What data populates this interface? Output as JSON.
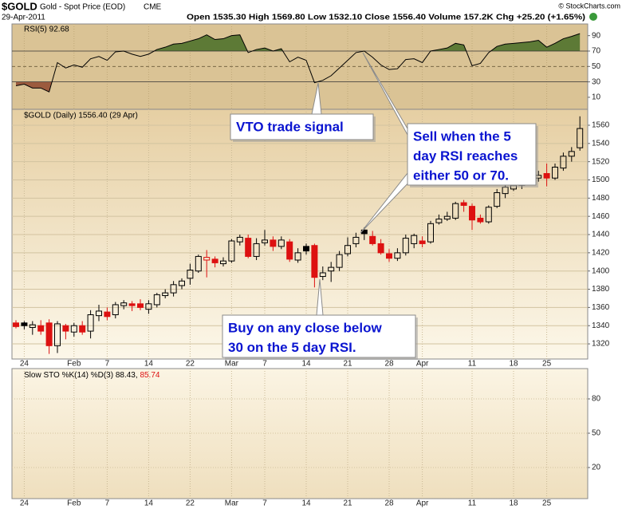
{
  "header": {
    "symbol": "$GOLD",
    "name": "Gold - Spot Price (EOD)",
    "exchange": "CME",
    "date": "29-Apr-2011",
    "quote": "Open 1535.30  High 1569.80  Low 1532.10  Close 1556.40  Volume 157.2K  Chg +25.20 (+1.65%)",
    "credit": "© StockCharts.com"
  },
  "chart_data": [
    {
      "type": "line",
      "title": "RSI(5) 92.68",
      "color": "#000000",
      "values": [
        25,
        27,
        22,
        22,
        17,
        55,
        48,
        52,
        49,
        60,
        63,
        58,
        69,
        70,
        66,
        63,
        66,
        72,
        75,
        79,
        80,
        83,
        86,
        91,
        85,
        86,
        90,
        91,
        68,
        72,
        74,
        70,
        73,
        56,
        62,
        58,
        29,
        32,
        38,
        48,
        58,
        68,
        70,
        62,
        52,
        46,
        47,
        59,
        60,
        55,
        70,
        72,
        74,
        80,
        78,
        51,
        54,
        68,
        76,
        79,
        80,
        81,
        82,
        84,
        75,
        80,
        86,
        89,
        92.68
      ],
      "ylim": [
        -5.6,
        105.2
      ],
      "yticks": [
        10,
        30,
        50,
        70,
        90
      ],
      "reference_lines": [
        70,
        50,
        30
      ],
      "fill_colors": {
        "above": "#5d7a36",
        "below": "#9c5b3e"
      }
    },
    {
      "type": "candlestick",
      "title": "$GOLD (Daily) 1556.40 (29 Apr)",
      "categories": [
        null,
        "24",
        null,
        null,
        null,
        null,
        null,
        "Feb",
        null,
        null,
        null,
        "7",
        null,
        null,
        null,
        null,
        "14",
        null,
        null,
        null,
        null,
        "22",
        null,
        null,
        null,
        null,
        "Mar",
        null,
        null,
        null,
        "7",
        null,
        null,
        null,
        null,
        "14",
        null,
        null,
        null,
        null,
        "21",
        null,
        null,
        null,
        null,
        "28",
        null,
        null,
        null,
        "Apr",
        null,
        null,
        null,
        null,
        null,
        "11",
        null,
        null,
        null,
        null,
        "18",
        null,
        null,
        null,
        "25",
        null,
        null,
        null,
        null
      ],
      "open": [
        1343,
        1343,
        1338,
        1340,
        1343,
        1318,
        1340,
        1333,
        1340,
        1334,
        1351,
        1355,
        1352,
        1362,
        1364,
        1364,
        1358,
        1363,
        1373,
        1376,
        1384,
        1392,
        1400,
        1412,
        1413,
        1408,
        1411,
        1432,
        1436,
        1416,
        1431,
        1434,
        1427,
        1432,
        1412,
        1427,
        1428,
        1394,
        1400,
        1404,
        1419,
        1430,
        1445,
        1438,
        1430,
        1419,
        1414,
        1420,
        1430,
        1433,
        1432,
        1453,
        1457,
        1458,
        1475,
        1471,
        1458,
        1454,
        1471,
        1485,
        1490,
        1494,
        1497,
        1502,
        1507,
        1502,
        1513,
        1526,
        1535.3
      ],
      "high": [
        1346,
        1345,
        1345,
        1346,
        1347,
        1345,
        1342,
        1343,
        1345,
        1357,
        1363,
        1360,
        1366,
        1368,
        1367,
        1369,
        1368,
        1376,
        1380,
        1389,
        1392,
        1408,
        1418,
        1423,
        1416,
        1415,
        1435,
        1440,
        1440,
        1436,
        1445,
        1438,
        1438,
        1435,
        1425,
        1430,
        1430,
        1405,
        1410,
        1422,
        1437,
        1442,
        1448,
        1444,
        1435,
        1424,
        1425,
        1440,
        1441,
        1438,
        1455,
        1462,
        1465,
        1476,
        1478,
        1474,
        1462,
        1472,
        1490,
        1495,
        1500,
        1500,
        1507,
        1510,
        1518,
        1518,
        1530,
        1536,
        1569.8
      ],
      "low": [
        1337,
        1336,
        1330,
        1330,
        1309,
        1310,
        1325,
        1328,
        1330,
        1326,
        1345,
        1346,
        1348,
        1358,
        1356,
        1357,
        1353,
        1360,
        1370,
        1372,
        1380,
        1385,
        1398,
        1393,
        1404,
        1405,
        1409,
        1428,
        1414,
        1412,
        1428,
        1422,
        1424,
        1410,
        1409,
        1418,
        1382,
        1390,
        1388,
        1400,
        1416,
        1426,
        1434,
        1428,
        1418,
        1410,
        1411,
        1417,
        1425,
        1426,
        1430,
        1451,
        1455,
        1456,
        1465,
        1445,
        1452,
        1452,
        1469,
        1480,
        1488,
        1490,
        1495,
        1498,
        1493,
        1500,
        1510,
        1520,
        1532.1
      ],
      "close": [
        1339,
        1340,
        1341,
        1334,
        1318,
        1342,
        1334,
        1340,
        1333,
        1352,
        1356,
        1350,
        1363,
        1365,
        1362,
        1360,
        1364,
        1374,
        1376,
        1385,
        1389,
        1401,
        1416,
        1415,
        1409,
        1411,
        1433,
        1437,
        1416,
        1430,
        1434,
        1427,
        1434,
        1413,
        1420,
        1422,
        1393,
        1398,
        1404,
        1418,
        1428,
        1437,
        1441,
        1430,
        1420,
        1414,
        1420,
        1436,
        1439,
        1430,
        1452,
        1457,
        1460,
        1474,
        1472,
        1456,
        1454,
        1470,
        1486,
        1492,
        1494,
        1496,
        1503,
        1505,
        1502,
        1514,
        1526,
        1531.2,
        1556.4
      ],
      "up_color": "#000000",
      "down_color": "#dd1111",
      "ylim": [
        1303.4,
        1577.5
      ],
      "yticks": [
        1320,
        1340,
        1360,
        1380,
        1400,
        1420,
        1440,
        1460,
        1480,
        1500,
        1520,
        1540,
        1560
      ],
      "grid": true,
      "annotations": [
        {
          "lines": [
            "VTO trade signal"
          ]
        },
        {
          "lines": [
            "Sell when the 5",
            "day RSI reaches",
            "either 50 or 70."
          ]
        },
        {
          "lines": [
            "Buy on any close below",
            "30 on the 5 day RSI."
          ]
        }
      ]
    },
    {
      "type": "line",
      "title": "Slow STO %K(14) %D(3) 88.43,",
      "title_d": "85.74",
      "title_d_color": "#dd1111",
      "ylim": [
        -7.2,
        106.5
      ],
      "yticks": [
        20,
        50,
        80
      ]
    }
  ]
}
